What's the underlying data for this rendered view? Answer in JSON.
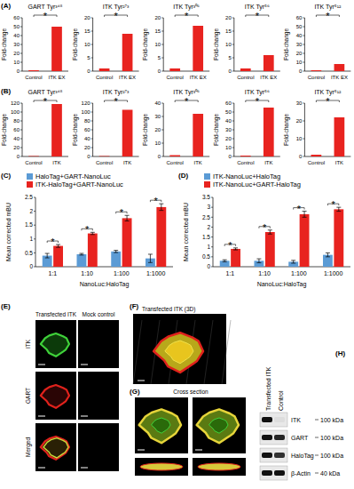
{
  "panel_labels": [
    "(A)",
    "(B)",
    "(C)",
    "(D)",
    "(E)",
    "(F)",
    "(G)",
    "(H)"
  ],
  "chart_data": [
    {
      "type": "bar",
      "title": "GART Tyr³⁴⁸",
      "y_label": "Fold-change",
      "categories": [
        "Control",
        "ITK EX"
      ],
      "values": [
        1,
        50
      ],
      "color": "#e8231f",
      "ylim": [
        0,
        60
      ],
      "yticks": [
        0,
        10,
        20,
        30,
        40,
        50,
        60
      ],
      "significance": "*"
    },
    {
      "type": "bar",
      "title": "ITK Tyr²⁷³",
      "y_label": "Fold-change",
      "categories": [
        "Control",
        "ITK EX"
      ],
      "values": [
        1,
        14
      ],
      "color": "#e8231f",
      "ylim": [
        0,
        20
      ],
      "yticks": [
        0,
        5,
        10,
        15,
        20
      ],
      "significance": "*"
    },
    {
      "type": "bar",
      "title": "ITK Tyr³⁰⁶",
      "y_label": "Fold-change",
      "categories": [
        "Control",
        "ITK EX"
      ],
      "values": [
        1,
        17
      ],
      "color": "#e8231f",
      "ylim": [
        0,
        20
      ],
      "yticks": [
        0,
        5,
        10,
        15,
        20
      ],
      "significance": "*"
    },
    {
      "type": "bar",
      "title": "ITK Tyr⁵⁶",
      "y_label": "Fold-change",
      "categories": [
        "Control",
        "ITK EX"
      ],
      "values": [
        1,
        6
      ],
      "color": "#e8231f",
      "ylim": [
        0,
        20
      ],
      "yticks": [
        0,
        5,
        10,
        15,
        20
      ],
      "significance": "*"
    },
    {
      "type": "bar",
      "title": "ITK Tyr⁵¹²",
      "y_label": "Fold-change",
      "categories": [
        "Control",
        "ITK EX"
      ],
      "values": [
        1,
        8
      ],
      "color": "#e8231f",
      "ylim": [
        0,
        60
      ],
      "yticks": [
        0,
        10,
        20,
        30,
        40,
        50,
        60
      ],
      "significance": "*"
    },
    {
      "type": "bar",
      "title": "GART Tyr³⁴⁸",
      "y_label": "Fold-change",
      "categories": [
        "Control",
        "ITK"
      ],
      "values": [
        1,
        118
      ],
      "color": "#e8231f",
      "ylim": [
        0,
        120
      ],
      "yticks": [
        0,
        20,
        40,
        60,
        80,
        100,
        120
      ],
      "significance": "*"
    },
    {
      "type": "bar",
      "title": "ITK Tyr²⁷³",
      "y_label": "Fold-change",
      "categories": [
        "Control",
        "ITK"
      ],
      "values": [
        1,
        105
      ],
      "color": "#e8231f",
      "ylim": [
        0,
        120
      ],
      "yticks": [
        0,
        20,
        40,
        60,
        80,
        100,
        120
      ],
      "significance": "*"
    },
    {
      "type": "bar",
      "title": "ITK Tyr³⁰⁶",
      "y_label": "Fold-change",
      "categories": [
        "Control",
        "ITK"
      ],
      "values": [
        1,
        32
      ],
      "color": "#e8231f",
      "ylim": [
        0,
        40
      ],
      "yticks": [
        0,
        10,
        20,
        30,
        40
      ],
      "significance": "*"
    },
    {
      "type": "bar",
      "title": "ITK Tyr⁵⁶",
      "y_label": "Fold-change",
      "categories": [
        "Control",
        "ITK"
      ],
      "values": [
        1,
        55
      ],
      "color": "#e8231f",
      "ylim": [
        0,
        60
      ],
      "yticks": [
        0,
        10,
        20,
        30,
        40,
        50,
        60
      ],
      "significance": "*"
    },
    {
      "type": "bar",
      "title": "ITK Tyr⁵¹²",
      "y_label": "Fold-change",
      "categories": [
        "Control",
        "ITK"
      ],
      "values": [
        1,
        22
      ],
      "color": "#e8231f",
      "ylim": [
        0,
        30
      ],
      "yticks": [
        0,
        10,
        20,
        30
      ],
      "significance": "*"
    },
    {
      "type": "bar",
      "y_label": "Mean corrected mBU",
      "x_label": "NanoLuc:HaloTag",
      "categories": [
        "1:1",
        "1:10",
        "1:100",
        "1:1000"
      ],
      "series": [
        {
          "name": "HaloTag+GART-NanoLuc",
          "color": "#5b9bd5",
          "values": [
            0.4,
            0.45,
            0.55,
            0.3
          ],
          "errors": [
            0.08,
            0.03,
            0.04,
            0.15
          ]
        },
        {
          "name": "ITK-HaloTag+GART-NanoLuc",
          "color": "#e8231f",
          "values": [
            0.75,
            1.2,
            1.75,
            2.15
          ],
          "errors": [
            0.05,
            0.04,
            0.1,
            0.12
          ]
        }
      ],
      "ylim": [
        0,
        2.5
      ],
      "yticks": [
        0,
        0.5,
        1,
        1.5,
        2,
        2.5
      ],
      "significance": "*",
      "legend": "top"
    },
    {
      "type": "bar",
      "y_label": "Mean corrected mBU",
      "x_label": "NanoLuc:HaloTag",
      "categories": [
        "1:1",
        "1:10",
        "1:100",
        "1:1000"
      ],
      "series": [
        {
          "name": "ITK-NanoLuc+HaloTag",
          "color": "#5b9bd5",
          "values": [
            0.3,
            0.3,
            0.25,
            0.6
          ],
          "errors": [
            0.05,
            0.1,
            0.07,
            0.1
          ]
        },
        {
          "name": "ITK-NanoLuc+GART-HaloTag",
          "color": "#e8231f",
          "values": [
            0.9,
            1.75,
            2.65,
            2.9
          ],
          "errors": [
            0.05,
            0.1,
            0.15,
            0.1
          ]
        }
      ],
      "ylim": [
        0,
        3.5
      ],
      "yticks": [
        0,
        0.5,
        1,
        1.5,
        2,
        2.5,
        3,
        3.5
      ],
      "significance": "*",
      "legend": "top"
    }
  ],
  "image_panels": {
    "E": {
      "column_titles": [
        "Transfected ITK",
        "Mock control"
      ],
      "row_labels": [
        "ITK",
        "GART",
        "Merged"
      ]
    },
    "F": {
      "title": "Transfected ITK (3D)"
    },
    "G": {
      "title": "Cross section"
    },
    "H": {
      "column_titles": [
        "Transfected ITK",
        "Control"
      ],
      "rows": [
        {
          "label": "ITK",
          "size": "100 kDa"
        },
        {
          "label": "GART",
          "size": "100 kDa"
        },
        {
          "label": "HaloTag",
          "size": "100 kDa"
        },
        {
          "label": "β-Actin",
          "size": "40 kDa"
        }
      ]
    }
  }
}
